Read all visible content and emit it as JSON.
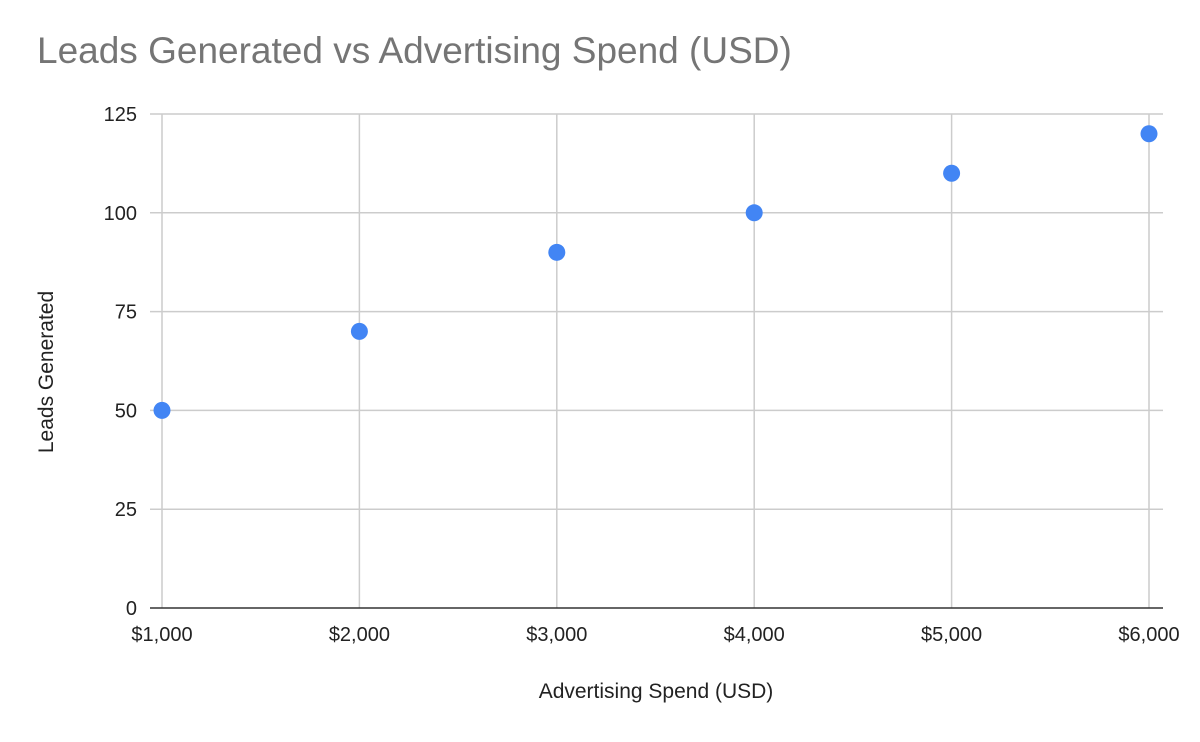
{
  "chart_data": {
    "type": "scatter",
    "title": "Leads Generated vs Advertising Spend (USD)",
    "xlabel": "Advertising Spend (USD)",
    "ylabel": "Leads Generated",
    "xlim": [
      1000,
      6000
    ],
    "ylim": [
      0,
      125
    ],
    "x_ticks": [
      1000,
      2000,
      3000,
      4000,
      5000,
      6000
    ],
    "x_tick_labels": [
      "$1,000",
      "$2,000",
      "$3,000",
      "$4,000",
      "$5,000",
      "$6,000"
    ],
    "y_ticks": [
      0,
      25,
      50,
      75,
      100,
      125
    ],
    "y_tick_labels": [
      "0",
      "25",
      "50",
      "75",
      "100",
      "125"
    ],
    "grid": true,
    "series": [
      {
        "x": [
          1000,
          2000,
          3000,
          4000,
          5000,
          6000
        ],
        "y": [
          50,
          70,
          90,
          100,
          110,
          120
        ],
        "color": "#4285f4"
      }
    ]
  }
}
